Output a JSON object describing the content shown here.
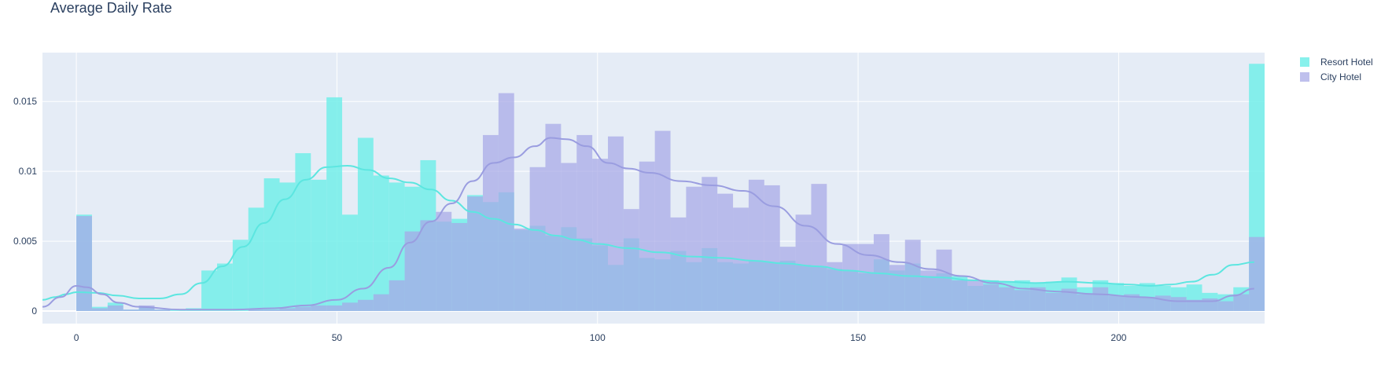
{
  "chart_data": {
    "type": "histogram",
    "title": "Average Daily Rate",
    "xlabel": "",
    "ylabel": "",
    "xlim": [
      -6.5,
      228
    ],
    "ylim": [
      -0.0009,
      0.0185
    ],
    "x_ticks": [
      0,
      50,
      100,
      150,
      200
    ],
    "x_tick_labels": [
      "0",
      "50",
      "100",
      "150",
      "200"
    ],
    "y_ticks": [
      0,
      0.005,
      0.01,
      0.015
    ],
    "y_tick_labels": [
      "0",
      "0.005",
      "0.01",
      "0.015"
    ],
    "grid": true,
    "legend_position": "top-right",
    "bin_width": 3,
    "bin_start": 0,
    "bins": [
      "0-3",
      "3-6",
      "6-9",
      "9-12",
      "12-15",
      "15-18",
      "18-21",
      "21-24",
      "24-27",
      "27-30",
      "30-33",
      "33-36",
      "36-39",
      "39-42",
      "42-45",
      "45-48",
      "48-51",
      "51-54",
      "54-57",
      "57-60",
      "60-63",
      "63-66",
      "66-69",
      "69-72",
      "72-75",
      "75-78",
      "78-81",
      "81-84",
      "84-87",
      "87-90",
      "90-93",
      "93-96",
      "96-99",
      "99-102",
      "102-105",
      "105-108",
      "108-111",
      "111-114",
      "114-117",
      "117-120",
      "120-123",
      "123-126",
      "126-129",
      "129-132",
      "132-135",
      "135-138",
      "138-141",
      "141-144",
      "144-147",
      "147-150",
      "150-153",
      "153-156",
      "156-159",
      "159-162",
      "162-165",
      "165-168",
      "168-171",
      "171-174",
      "174-177",
      "177-180",
      "180-183",
      "183-186",
      "186-189",
      "189-192",
      "192-195",
      "195-198",
      "198-201",
      "201-204",
      "204-207",
      "207-210",
      "210-213",
      "213-216",
      "216-219",
      "219-222",
      "222-225",
      "225-228"
    ],
    "series": [
      {
        "name": "Resort Hotel",
        "color": "#6eeee8",
        "opacity": 0.82,
        "values": [
          0.0069,
          0.0003,
          0.0006,
          0.0001,
          0.0003,
          0.0001,
          0.0001,
          0.0002,
          0.0029,
          0.0034,
          0.0051,
          0.0074,
          0.0095,
          0.0092,
          0.0113,
          0.0094,
          0.0153,
          0.0069,
          0.0124,
          0.0097,
          0.0092,
          0.0089,
          0.0108,
          0.0064,
          0.0066,
          0.0083,
          0.0078,
          0.0085,
          0.0058,
          0.0061,
          0.0054,
          0.006,
          0.0052,
          0.0047,
          0.0033,
          0.0052,
          0.0038,
          0.0037,
          0.0043,
          0.0035,
          0.0045,
          0.0035,
          0.0034,
          0.0036,
          0.0035,
          0.0036,
          0.0033,
          0.0032,
          0.003,
          0.0029,
          0.0027,
          0.0037,
          0.0029,
          0.0034,
          0.0025,
          0.0027,
          0.0025,
          0.0018,
          0.0022,
          0.0021,
          0.0022,
          0.002,
          0.0021,
          0.0024,
          0.0017,
          0.0022,
          0.002,
          0.0018,
          0.002,
          0.0018,
          0.0017,
          0.0019,
          0.0013,
          0.0012,
          0.0017,
          0.0177
        ],
        "kde": [
          [
            -6.5,
            0.0008
          ],
          [
            -4,
            0.001
          ],
          [
            -2,
            0.0012
          ],
          [
            0,
            0.00135
          ],
          [
            4,
            0.0013
          ],
          [
            8,
            0.0011
          ],
          [
            12,
            0.0009
          ],
          [
            16,
            0.0009
          ],
          [
            20,
            0.0012
          ],
          [
            24,
            0.002
          ],
          [
            28,
            0.0032
          ],
          [
            32,
            0.0046
          ],
          [
            36,
            0.0063
          ],
          [
            40,
            0.008
          ],
          [
            44,
            0.0094
          ],
          [
            48,
            0.0103
          ],
          [
            52,
            0.0104
          ],
          [
            56,
            0.0101
          ],
          [
            60,
            0.0095
          ],
          [
            64,
            0.0092
          ],
          [
            68,
            0.0087
          ],
          [
            72,
            0.0079
          ],
          [
            76,
            0.0071
          ],
          [
            80,
            0.0066
          ],
          [
            84,
            0.0062
          ],
          [
            88,
            0.0058
          ],
          [
            92,
            0.0054
          ],
          [
            96,
            0.0051
          ],
          [
            100,
            0.0048
          ],
          [
            106,
            0.0045
          ],
          [
            112,
            0.0042
          ],
          [
            118,
            0.0039
          ],
          [
            124,
            0.0038
          ],
          [
            130,
            0.0036
          ],
          [
            136,
            0.0034
          ],
          [
            142,
            0.0032
          ],
          [
            148,
            0.0029
          ],
          [
            154,
            0.0027
          ],
          [
            160,
            0.0025
          ],
          [
            166,
            0.0024
          ],
          [
            172,
            0.0022
          ],
          [
            178,
            0.0021
          ],
          [
            184,
            0.002
          ],
          [
            190,
            0.0021
          ],
          [
            196,
            0.002
          ],
          [
            202,
            0.0019
          ],
          [
            206,
            0.0018
          ],
          [
            210,
            0.0019
          ],
          [
            214,
            0.0021
          ],
          [
            218,
            0.0026
          ],
          [
            222,
            0.0033
          ],
          [
            226,
            0.0035
          ]
        ]
      },
      {
        "name": "City Hotel",
        "color": "#a6a8e6",
        "opacity": 0.72,
        "values": [
          0.0068,
          0.0002,
          0.0004,
          0.0001,
          0.0004,
          0.0001,
          0.0,
          0.0,
          0.0,
          0.0,
          0.0,
          0.0001,
          0.0001,
          0.0002,
          0.0003,
          0.0004,
          0.0004,
          0.0006,
          0.0008,
          0.0012,
          0.0022,
          0.0057,
          0.0065,
          0.0071,
          0.0063,
          0.0082,
          0.0126,
          0.0156,
          0.0059,
          0.0103,
          0.0134,
          0.0106,
          0.0126,
          0.0109,
          0.0125,
          0.0073,
          0.0107,
          0.0129,
          0.0067,
          0.0089,
          0.0096,
          0.0084,
          0.0074,
          0.0094,
          0.009,
          0.0046,
          0.0069,
          0.0091,
          0.0035,
          0.0048,
          0.0048,
          0.0055,
          0.0033,
          0.0051,
          0.0029,
          0.0044,
          0.0022,
          0.0022,
          0.0019,
          0.0017,
          0.0015,
          0.0017,
          0.0013,
          0.0016,
          0.0012,
          0.0017,
          0.0011,
          0.0012,
          0.001,
          0.0011,
          0.001,
          0.0008,
          0.0009,
          0.0007,
          0.0012,
          0.0053
        ],
        "kde": [
          [
            -6.5,
            0.0003
          ],
          [
            -3,
            0.001
          ],
          [
            0,
            0.0018
          ],
          [
            2,
            0.0017
          ],
          [
            5,
            0.0012
          ],
          [
            8,
            0.0006
          ],
          [
            12,
            0.0003
          ],
          [
            20,
            0.0001
          ],
          [
            30,
            0.0001
          ],
          [
            38,
            0.0002
          ],
          [
            44,
            0.0004
          ],
          [
            50,
            0.0008
          ],
          [
            55,
            0.0016
          ],
          [
            60,
            0.0031
          ],
          [
            64,
            0.0049
          ],
          [
            68,
            0.0064
          ],
          [
            72,
            0.0077
          ],
          [
            76,
            0.0093
          ],
          [
            80,
            0.0106
          ],
          [
            84,
            0.011
          ],
          [
            88,
            0.0118
          ],
          [
            91,
            0.0124
          ],
          [
            94,
            0.0123
          ],
          [
            98,
            0.0118
          ],
          [
            102,
            0.0106
          ],
          [
            106,
            0.0102
          ],
          [
            110,
            0.0099
          ],
          [
            116,
            0.0093
          ],
          [
            122,
            0.009
          ],
          [
            128,
            0.0086
          ],
          [
            134,
            0.0075
          ],
          [
            140,
            0.0061
          ],
          [
            146,
            0.0048
          ],
          [
            152,
            0.004
          ],
          [
            158,
            0.0035
          ],
          [
            164,
            0.003
          ],
          [
            170,
            0.0025
          ],
          [
            176,
            0.002
          ],
          [
            182,
            0.0016
          ],
          [
            188,
            0.0014
          ],
          [
            196,
            0.0012
          ],
          [
            204,
            0.001
          ],
          [
            212,
            0.0007
          ],
          [
            218,
            0.0007
          ],
          [
            222,
            0.0011
          ],
          [
            226,
            0.0016
          ]
        ]
      }
    ]
  }
}
